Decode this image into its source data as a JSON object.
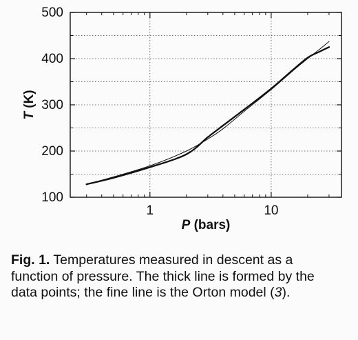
{
  "chart_data": {
    "type": "line",
    "title": "",
    "xlabel": "P (bars)",
    "xlabel_var": "P",
    "xlabel_unit": " (bars)",
    "ylabel": "T (K)",
    "ylabel_var": "T",
    "ylabel_unit": " (K)",
    "xscale": "log",
    "xlim": [
      0.22,
      38
    ],
    "ylim": [
      100,
      500
    ],
    "xticks": [
      1,
      10
    ],
    "xtick_labels": [
      "1",
      "10"
    ],
    "yticks": [
      100,
      200,
      300,
      400,
      500
    ],
    "ytick_labels": [
      "100",
      "200",
      "300",
      "400",
      "500"
    ],
    "grid": "dashed",
    "series": [
      {
        "style": "thick",
        "x": [
          0.3,
          0.5,
          1.0,
          2.0,
          3.0,
          4.0,
          6.0,
          10.0,
          15.0,
          20.0,
          25.0,
          30.0
        ],
        "y": [
          128,
          142,
          165,
          193,
          230,
          255,
          290,
          335,
          375,
          402,
          415,
          425
        ]
      },
      {
        "style": "fine",
        "x": [
          0.3,
          0.5,
          1.0,
          2.0,
          3.0,
          4.0,
          6.0,
          10.0,
          15.0,
          20.0,
          25.0,
          30.0
        ],
        "y": [
          128,
          144,
          168,
          200,
          226,
          248,
          286,
          333,
          373,
          400,
          420,
          437
        ]
      }
    ]
  },
  "caption": {
    "label": "Fig. 1.",
    "text_before_ref": " Temperatures measured in descent as a function of pressure. The thick line is formed by the data points; the fine line is the Orton model (",
    "ref": "3",
    "text_after_ref": ")."
  }
}
